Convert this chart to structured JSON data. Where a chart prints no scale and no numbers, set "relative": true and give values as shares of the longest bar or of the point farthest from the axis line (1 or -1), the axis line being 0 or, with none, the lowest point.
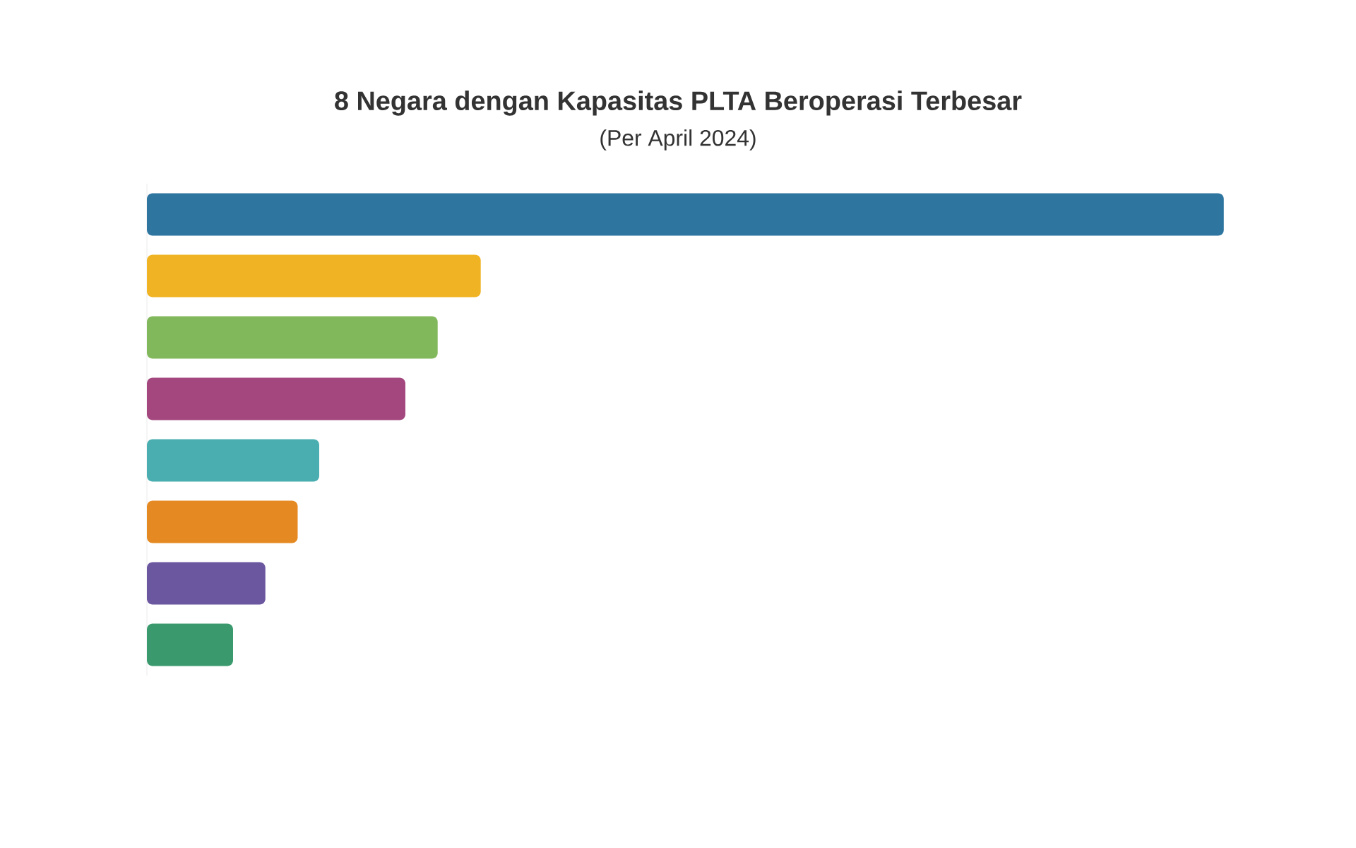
{
  "chart_data": {
    "type": "bar",
    "orientation": "horizontal",
    "relative": true,
    "title": "8 Negara dengan Kapasitas PLTA Beroperasi Terbesar",
    "subtitle": "(Per April 2024)",
    "categories": [
      null,
      null,
      null,
      null,
      null,
      null,
      null,
      null
    ],
    "values": [
      1,
      0.31,
      0.27,
      0.24,
      0.16,
      0.14,
      0.11,
      0.08
    ],
    "colors": [
      "#2e75a0",
      "#f0b323",
      "#82b85c",
      "#a3477e",
      "#4aaeb0",
      "#e58a22",
      "#6b56a0",
      "#3a9a6e"
    ]
  }
}
